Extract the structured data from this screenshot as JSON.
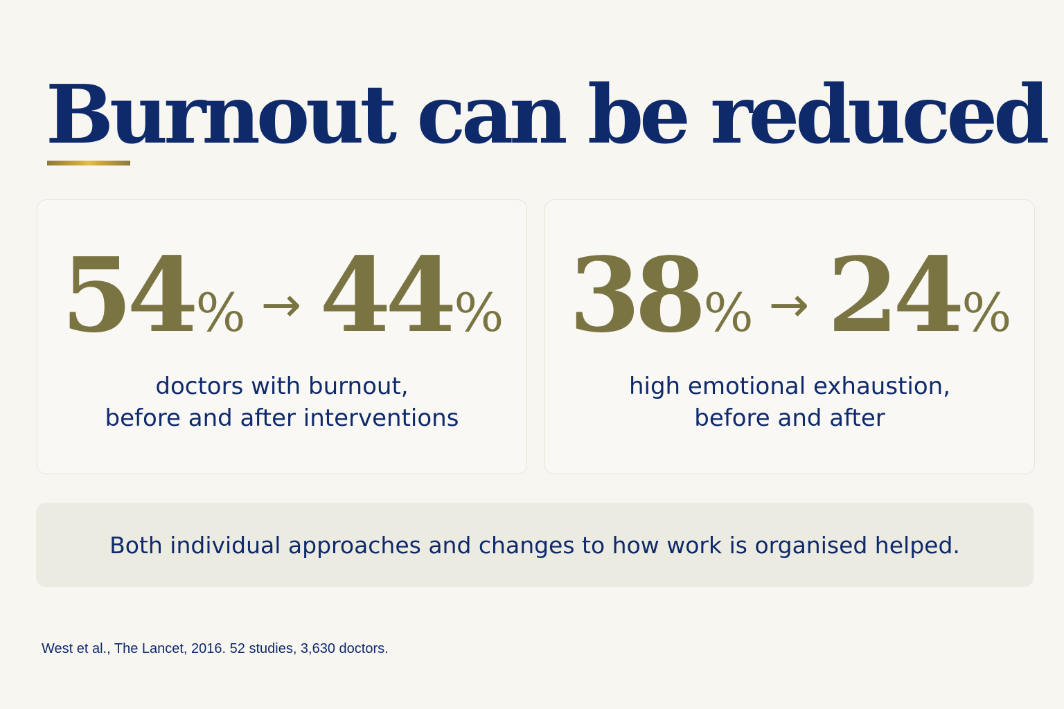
{
  "title": "Burnout can be reduced",
  "accent_color": "#c9a53a",
  "stat_cards": [
    {
      "before": "54",
      "after": "44",
      "unit": "%",
      "arrow": "→",
      "description_lines": [
        "doctors with burnout,",
        "before and after interventions"
      ]
    },
    {
      "before": "38",
      "after": "24",
      "unit": "%",
      "arrow": "→",
      "description_lines": [
        "high emotional exhaustion,",
        "before and after"
      ]
    }
  ],
  "summary": "Both individual approaches and changes to how work is organised helped.",
  "citation": "West et al., The Lancet, 2016. 52 studies, 3,630 doctors.",
  "colors": {
    "navy": "#0f2a6b",
    "olive": "#7a7442",
    "background": "#f8f6f1",
    "banner": "#ecebe1"
  }
}
